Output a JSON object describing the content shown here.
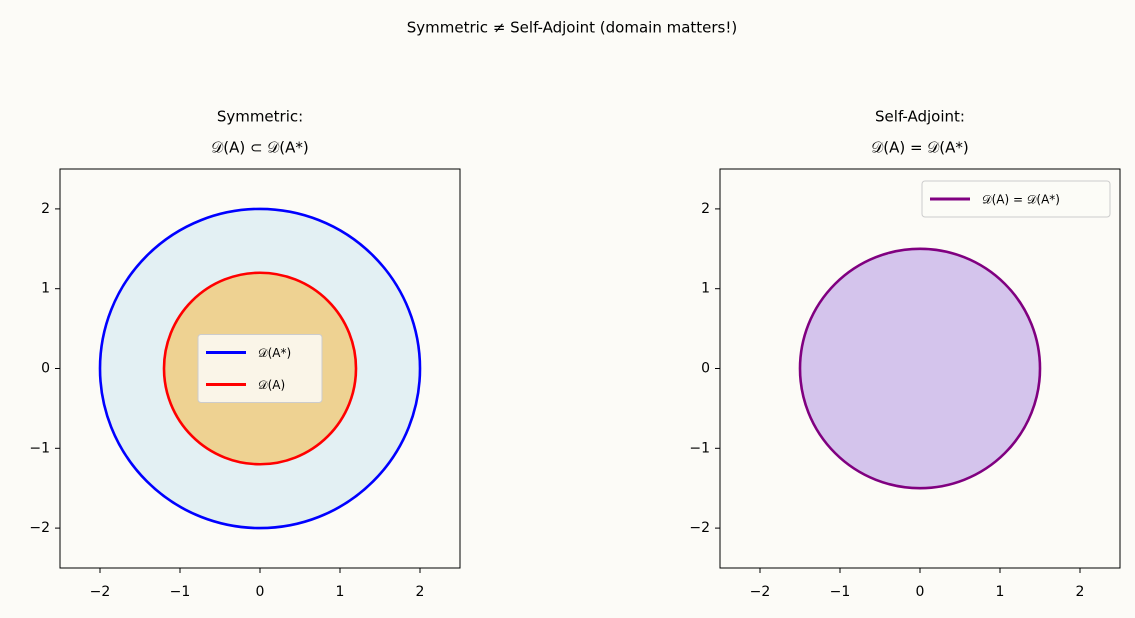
{
  "title": "Symmetric  ≠  Self-Adjoint (domain matters!)",
  "chart_data": [
    {
      "type": "circle",
      "title": [
        "Symmetric:",
        "𝒟(A) ⊂ 𝒟(A*)"
      ],
      "xlim": [
        -2.5,
        2.5
      ],
      "ylim": [
        -2.5,
        2.5
      ],
      "xticks": [
        {
          "value": -2,
          "label": "−2"
        },
        {
          "value": -1,
          "label": "−1"
        },
        0,
        1,
        2
      ],
      "yticks": [
        {
          "value": -2,
          "label": "−2"
        },
        {
          "value": -1,
          "label": "−1"
        },
        0,
        1,
        2
      ],
      "legend": "center",
      "series": [
        {
          "name": "𝒟(A*)",
          "color": "#0000ff",
          "fill": "#e3f0f3",
          "center": [
            0,
            0
          ],
          "radius": 2
        },
        {
          "name": "𝒟(A)",
          "color": "#ff0000",
          "fill": "#eed292",
          "center": [
            0,
            0
          ],
          "radius": 1.2
        }
      ]
    },
    {
      "type": "circle",
      "title": [
        "Self-Adjoint:",
        "𝒟(A) = 𝒟(A*)"
      ],
      "xlim": [
        -2.5,
        2.5
      ],
      "ylim": [
        -2.5,
        2.5
      ],
      "xticks": [
        {
          "value": -2,
          "label": "−2"
        },
        {
          "value": -1,
          "label": "−1"
        },
        0,
        1,
        2
      ],
      "yticks": [
        {
          "value": -2,
          "label": "−2"
        },
        {
          "value": -1,
          "label": "−1"
        },
        0,
        1,
        2
      ],
      "legend": "upper right",
      "series": [
        {
          "name": "𝒟(A) = 𝒟(A*)",
          "color": "#800080",
          "fill": "#d4c4ec",
          "center": [
            0,
            0
          ],
          "radius": 1.5
        }
      ]
    }
  ]
}
